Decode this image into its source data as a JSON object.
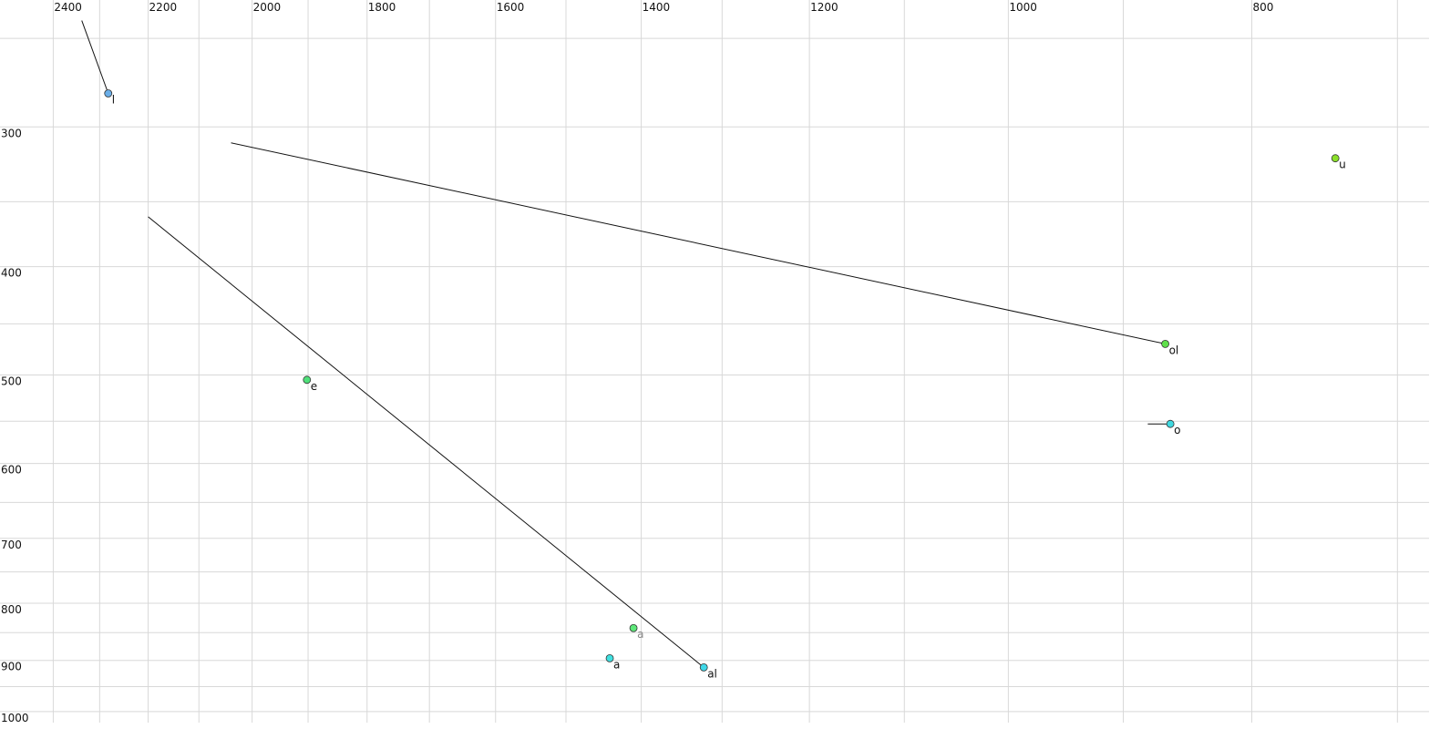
{
  "chart_data": {
    "type": "scatter",
    "xscale": "log",
    "yscale": "log",
    "grid": true,
    "xlim": [
      2520,
      680
    ],
    "ylim": [
      231,
      1023
    ],
    "xticks": [
      2400,
      2200,
      2000,
      1800,
      1600,
      1400,
      1200,
      1000,
      800
    ],
    "xminor": [
      2300,
      2100,
      1900,
      1700,
      1500,
      1300,
      1100,
      900,
      700
    ],
    "yticks": [
      300,
      400,
      500,
      600,
      700,
      800,
      900,
      1000
    ],
    "yminor": [
      250,
      350,
      450,
      550,
      650,
      750,
      850,
      950
    ],
    "points": [
      {
        "label": "l",
        "x": 2282,
        "y": 280,
        "color": "#6aaee8",
        "trail": {
          "x": 2338,
          "y": 241
        }
      },
      {
        "label": "u",
        "x": 741,
        "y": 320,
        "color": "#8be02a"
      },
      {
        "label": "ol",
        "x": 866,
        "y": 469,
        "color": "#5fe04a",
        "trail": {
          "x": 2039,
          "y": 310
        }
      },
      {
        "label": "e",
        "x": 1902,
        "y": 505,
        "color": "#4fe07a"
      },
      {
        "label": "o",
        "x": 862,
        "y": 553,
        "color": "#3fd8e0",
        "trail": {
          "x": 880,
          "y": 553
        }
      },
      {
        "label": "a",
        "x": 1410,
        "y": 842,
        "color": "#5ee87a",
        "label_color": "#888888"
      },
      {
        "label": "a",
        "x": 1441,
        "y": 896,
        "color": "#3fe0e0"
      },
      {
        "label": "al",
        "x": 1322,
        "y": 913,
        "color": "#3fd8e8",
        "trail": {
          "x": 2200,
          "y": 361
        }
      }
    ]
  }
}
